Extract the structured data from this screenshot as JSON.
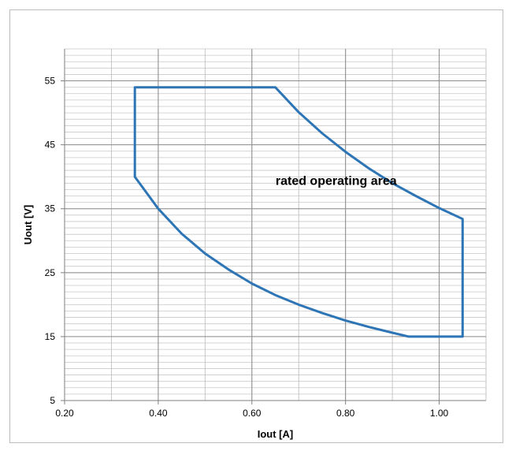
{
  "chart_data": {
    "type": "area",
    "title": "",
    "xlabel": "Iout [A]",
    "ylabel": "Uout [V]",
    "xlim": [
      0.2,
      1.1
    ],
    "ylim": [
      5,
      60
    ],
    "x_ticks": [
      0.2,
      0.4,
      0.6,
      0.8,
      1.0
    ],
    "x_tick_labels": [
      "0.20",
      "0.40",
      "0.60",
      "0.80",
      "1.00"
    ],
    "y_ticks": [
      5,
      15,
      25,
      35,
      45,
      55
    ],
    "y_tick_labels": [
      "5",
      "15",
      "25",
      "35",
      "45",
      "55"
    ],
    "grid": true,
    "legend": "none",
    "annotation": "rated operating area",
    "annotation_at": [
      0.78,
      38.7
    ],
    "series": [
      {
        "color": "#2e75b6",
        "points": [
          [
            0.35,
            54
          ],
          [
            0.65,
            54
          ],
          [
            0.7,
            50.1
          ],
          [
            0.75,
            46.8
          ],
          [
            0.8,
            43.9
          ],
          [
            0.85,
            41.3
          ],
          [
            0.9,
            39.0
          ],
          [
            0.95,
            37.0
          ],
          [
            1.0,
            35.1
          ],
          [
            1.05,
            33.4
          ],
          [
            1.05,
            15
          ],
          [
            0.935,
            15
          ],
          [
            0.9,
            15.6
          ],
          [
            0.85,
            16.5
          ],
          [
            0.8,
            17.5
          ],
          [
            0.75,
            18.7
          ],
          [
            0.7,
            20.0
          ],
          [
            0.65,
            21.5
          ],
          [
            0.6,
            23.3
          ],
          [
            0.55,
            25.5
          ],
          [
            0.5,
            28.0
          ],
          [
            0.45,
            31.1
          ],
          [
            0.4,
            35.0
          ],
          [
            0.35,
            40.0
          ],
          [
            0.35,
            54
          ]
        ]
      }
    ]
  }
}
